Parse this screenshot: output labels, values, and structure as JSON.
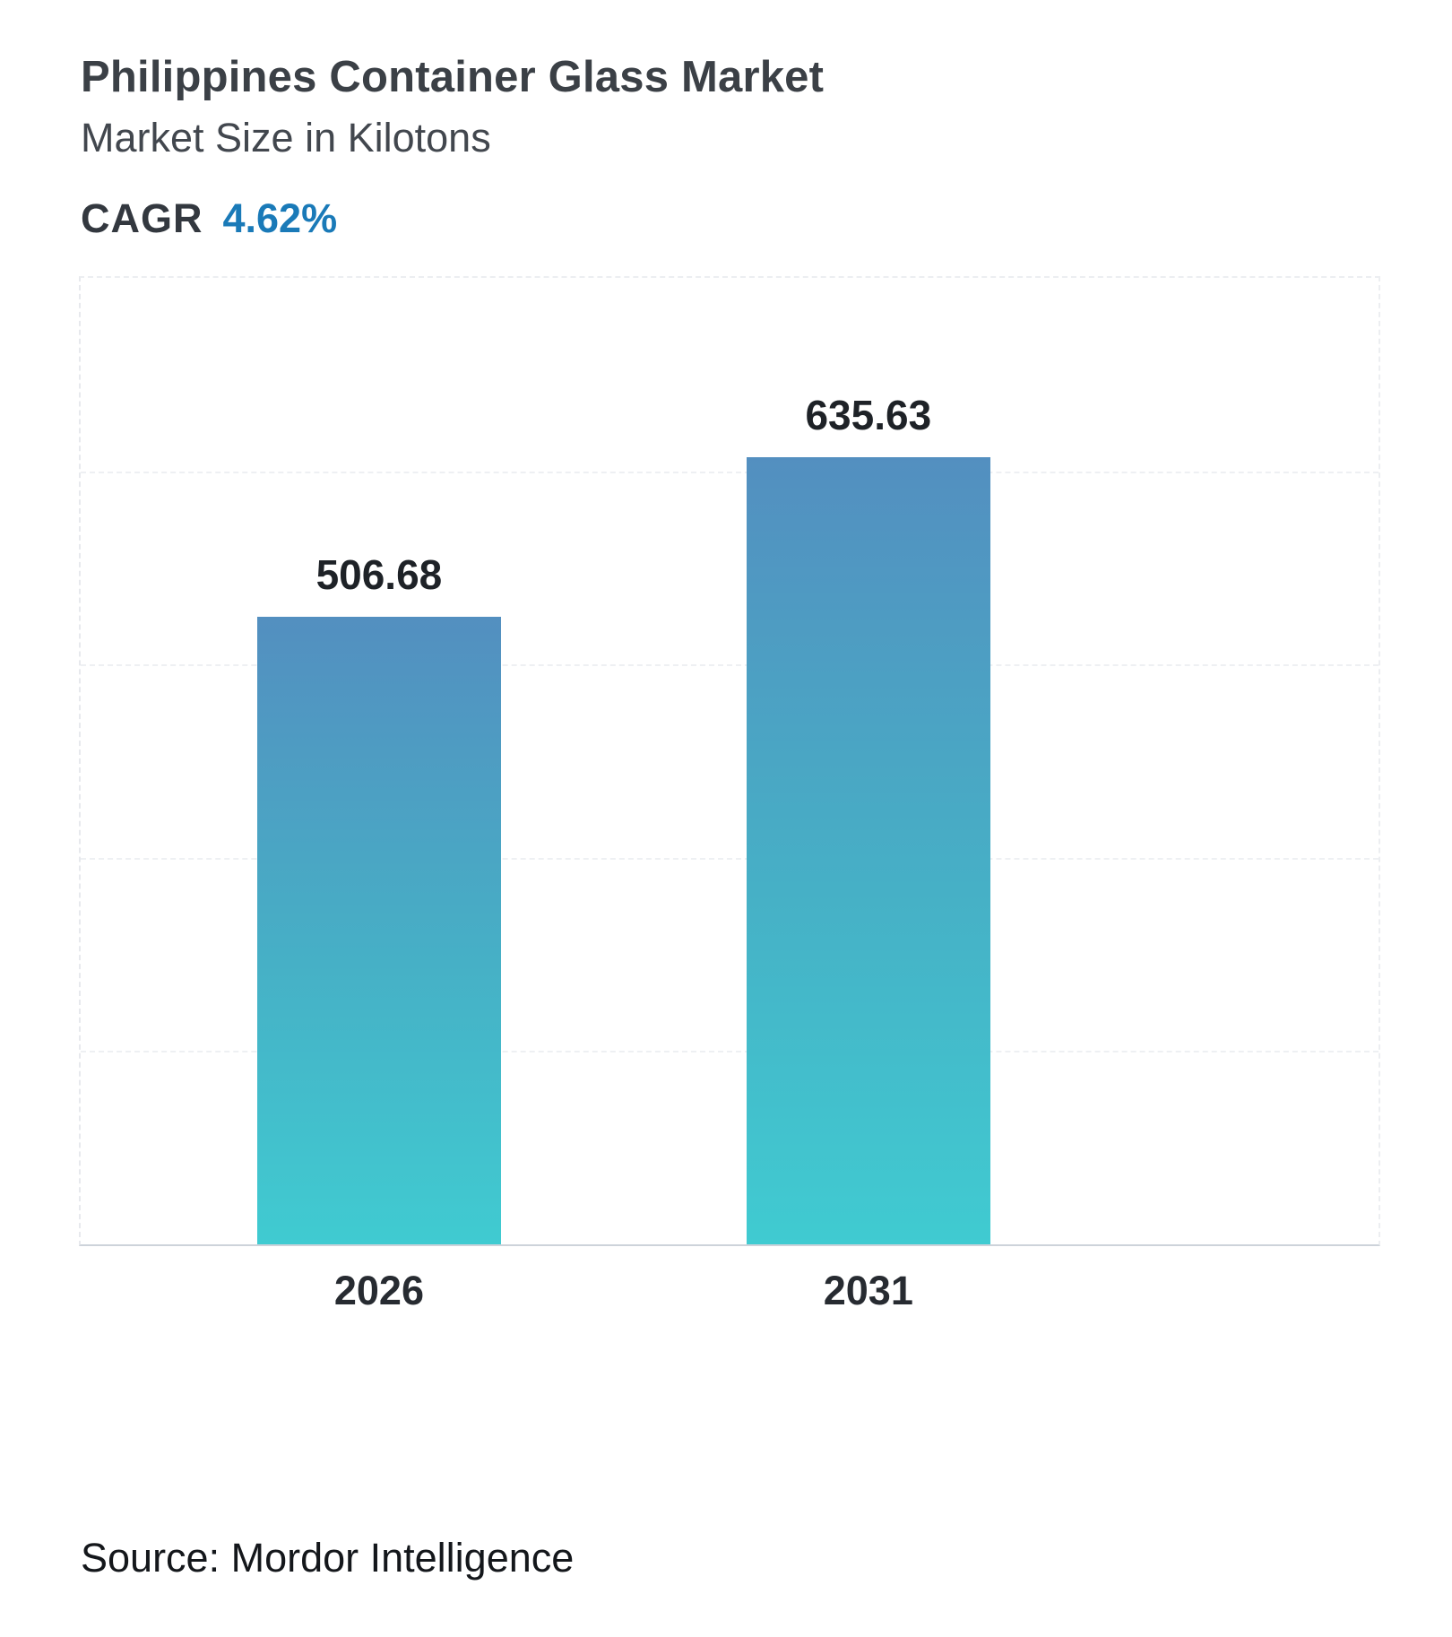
{
  "header": {},
  "cagr": {
    "label": "CAGR",
    "value": "4.62%"
  },
  "chart_data": {
    "type": "bar",
    "title": "Philippines Container Glass Market",
    "subtitle": "Market Size in Kilotons",
    "categories": [
      "2026",
      "2031"
    ],
    "values": [
      506.68,
      635.63
    ],
    "value_labels": [
      "506.68",
      "635.63"
    ],
    "xlabel": "",
    "ylabel": "Market Size in Kilotons",
    "ylim": [
      0,
      780
    ],
    "grid": true,
    "legend": "none"
  },
  "source": {
    "text": "Source: Mordor Intelligence"
  },
  "colors": {
    "accent_blue": "#1a7ab8",
    "bar_gradient_top": "#538fc0",
    "bar_gradient_mid": "#46b0c6",
    "bar_gradient_bottom": "#40cbd1",
    "title_text": "#3b4046",
    "label_text": "#1e2227",
    "gridline": "#eef0f3"
  }
}
